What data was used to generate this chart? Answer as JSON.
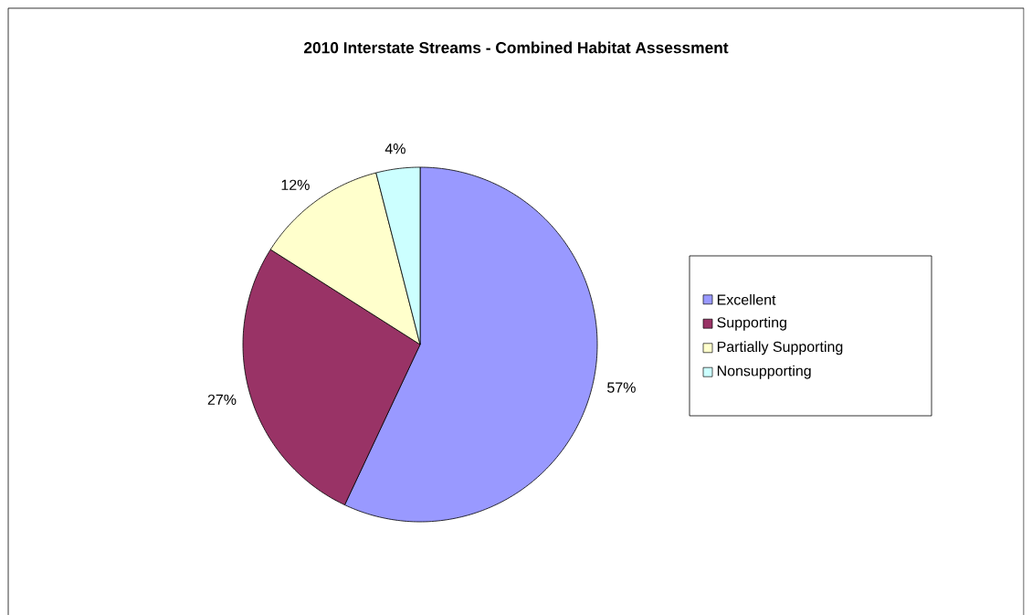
{
  "chart_data": {
    "type": "pie",
    "title": "2010 Interstate Streams - Combined Habitat Assessment",
    "categories": [
      "Excellent",
      "Supporting",
      "Partially Supporting",
      "Nonsupporting"
    ],
    "values": [
      57,
      27,
      12,
      4
    ],
    "value_labels": [
      "57%",
      "27%",
      "12%",
      "4%"
    ],
    "colors": [
      "#9999ff",
      "#993366",
      "#ffffcc",
      "#ccffff"
    ],
    "legend": "right"
  }
}
